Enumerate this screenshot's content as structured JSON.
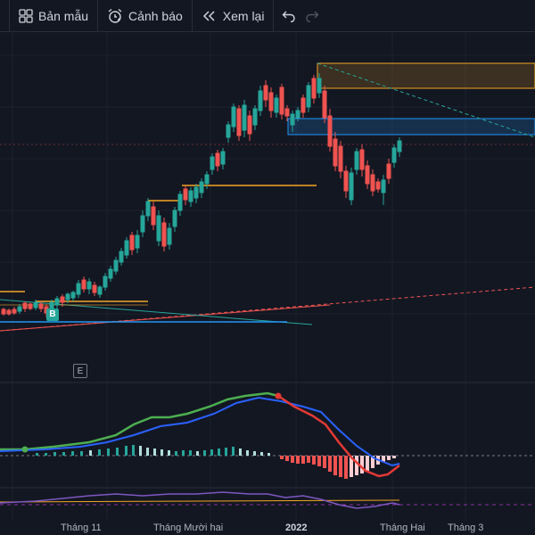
{
  "toolbar": {
    "templates_label": "Bản mẫu",
    "alert_label": "Cảnh báo",
    "replay_label": "Xem lại"
  },
  "markers": {
    "buy": "B",
    "event": "E"
  },
  "time_axis": [
    "Tháng 11",
    "Tháng Mười hai",
    "2022",
    "Tháng Hai",
    "Tháng 3"
  ],
  "colors": {
    "up": "#26a69a",
    "down": "#ef5350",
    "macd": "#2962ff",
    "signal": "#e53935",
    "fast": "#4caf50",
    "bg": "#131722",
    "zone_orange": "#f5a623",
    "zone_blue": "#2196f3"
  }
}
